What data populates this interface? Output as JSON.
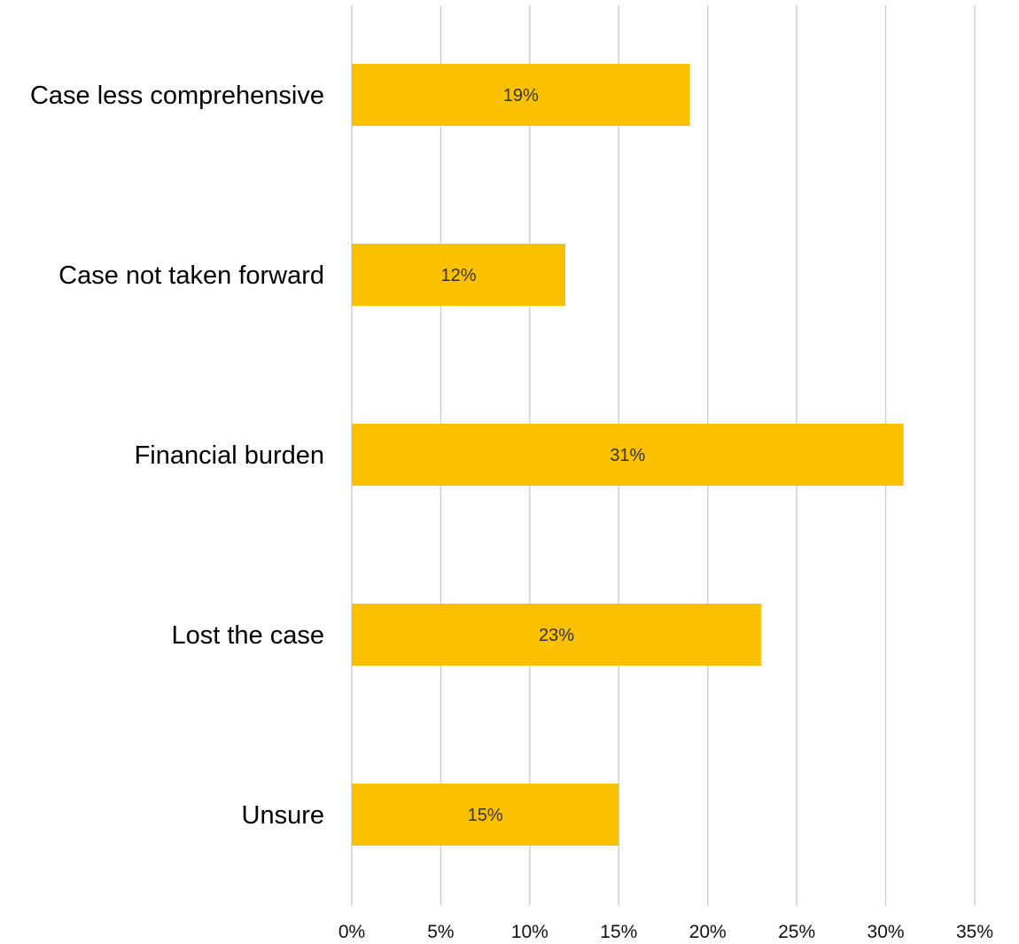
{
  "chart_data": {
    "type": "bar",
    "orientation": "horizontal",
    "categories": [
      "Case less comprehensive",
      "Case not taken forward",
      "Financial burden",
      "Lost the case",
      "Unsure"
    ],
    "values": [
      19,
      12,
      31,
      23,
      15
    ],
    "data_labels": [
      "19%",
      "12%",
      "31%",
      "23%",
      "15%"
    ],
    "xlim": [
      0,
      35
    ],
    "x_ticks": [
      0,
      5,
      10,
      15,
      20,
      25,
      30,
      35
    ],
    "x_tick_labels": [
      "0%",
      "5%",
      "10%",
      "15%",
      "20%",
      "25%",
      "30%",
      "35%"
    ],
    "grid": "vertical",
    "legend": "none",
    "colors": {
      "bar": "#FBC000",
      "grid": "#d0d0d0",
      "category_text": "#000000",
      "data_label_text": "#333333",
      "tick_text": "#111111"
    }
  }
}
